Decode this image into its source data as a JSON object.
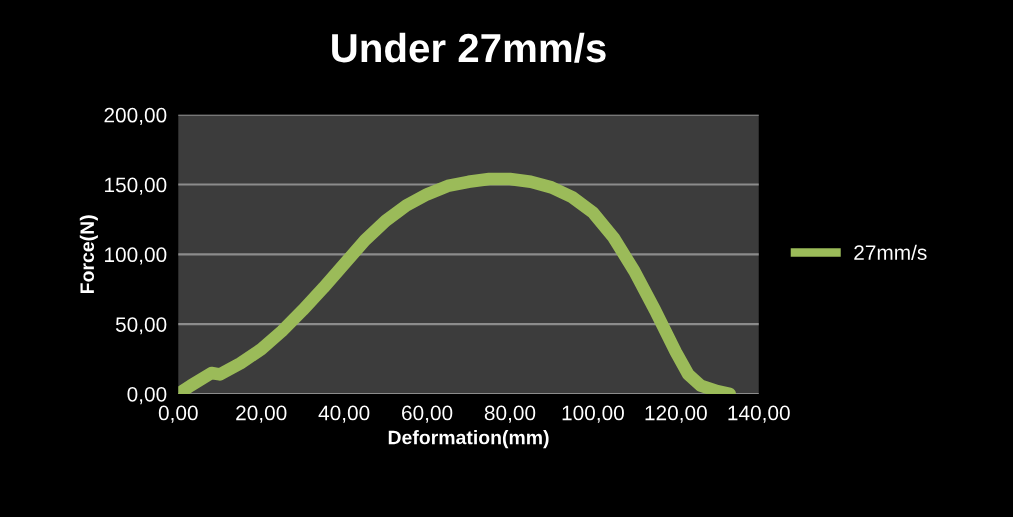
{
  "chart_data": {
    "type": "line",
    "title": "Under 27mm/s",
    "xlabel": "Deformation(mm)",
    "ylabel": "Force(N)",
    "x": [
      0,
      3,
      8,
      10,
      15,
      20,
      25,
      30,
      35,
      40,
      45,
      50,
      55,
      60,
      65,
      70,
      75,
      80,
      85,
      90,
      95,
      100,
      105,
      110,
      115,
      120,
      123,
      126,
      130,
      133
    ],
    "series": [
      {
        "name": "27mm/s",
        "color": "#9bbb59",
        "values": [
          0,
          6,
          15,
          14,
          22,
          32,
          45,
          60,
          76,
          93,
          110,
          124,
          135,
          143,
          149,
          152,
          154,
          154,
          152,
          148,
          141,
          130,
          112,
          88,
          60,
          30,
          14,
          6,
          2,
          0
        ]
      }
    ],
    "xlim": [
      0,
      140
    ],
    "ylim": [
      0,
      200
    ],
    "xticks": [
      {
        "value": 0,
        "label": "0,00"
      },
      {
        "value": 20,
        "label": "20,00"
      },
      {
        "value": 40,
        "label": "40,00"
      },
      {
        "value": 60,
        "label": "60,00"
      },
      {
        "value": 80,
        "label": "80,00"
      },
      {
        "value": 100,
        "label": "100,00"
      },
      {
        "value": 120,
        "label": "120,00"
      },
      {
        "value": 140,
        "label": "140,00"
      }
    ],
    "yticks": [
      {
        "value": 0,
        "label": "0,00"
      },
      {
        "value": 50,
        "label": "50,00"
      },
      {
        "value": 100,
        "label": "100,00"
      },
      {
        "value": 150,
        "label": "150,00"
      },
      {
        "value": 200,
        "label": "200,00"
      }
    ],
    "grid": "y",
    "legend": "right",
    "marker": "none",
    "line_style": "solid"
  }
}
